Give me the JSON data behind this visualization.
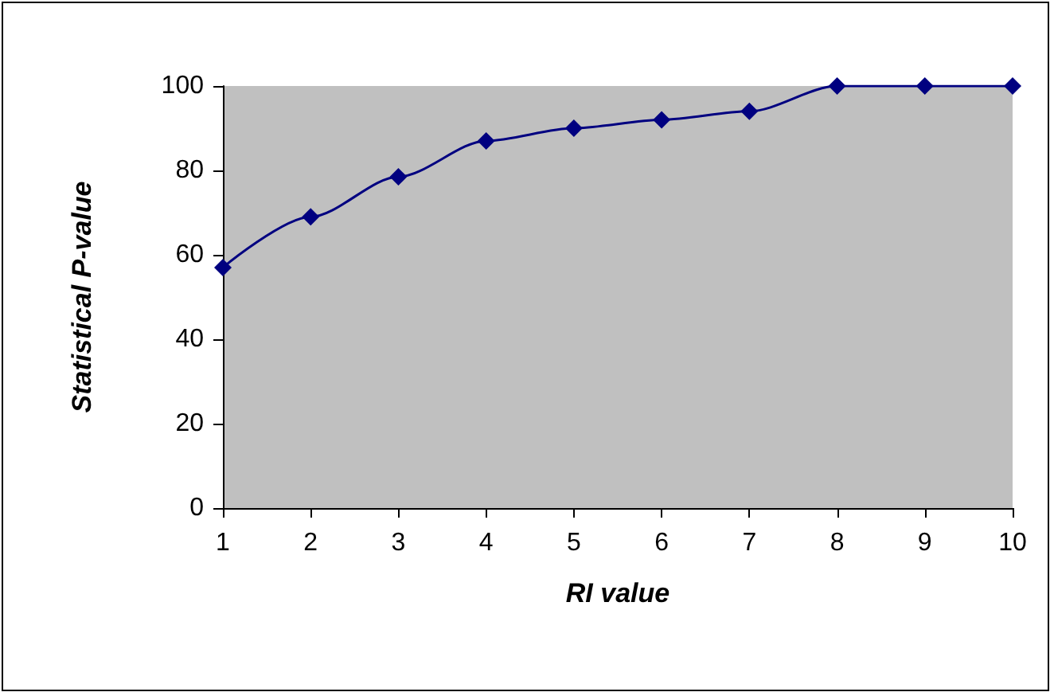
{
  "chart_data": {
    "type": "line",
    "xlabel": "RI value",
    "ylabel": "Statistical P-value",
    "categories": [
      "1",
      "2",
      "3",
      "4",
      "5",
      "6",
      "7",
      "8",
      "9",
      "10"
    ],
    "series": [
      {
        "color": "#000080",
        "values": [
          57,
          69,
          78.5,
          87,
          90,
          92,
          94,
          100,
          100,
          100
        ]
      }
    ],
    "ylim": [
      0,
      100
    ],
    "yticks": [
      0,
      20,
      40,
      60,
      80,
      100
    ],
    "marker": "diamond",
    "line_style": "solid"
  }
}
